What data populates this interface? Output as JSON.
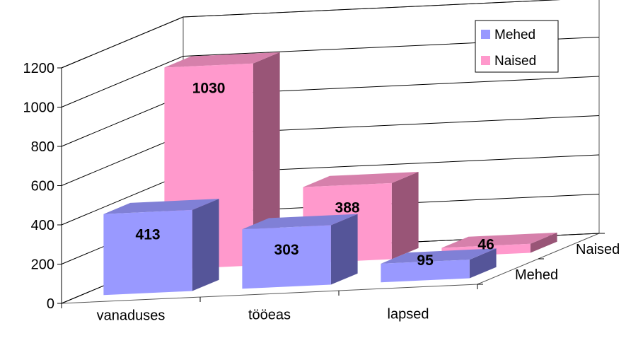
{
  "chart_data": {
    "type": "bar",
    "categories": [
      "vanaduses",
      "tööeas",
      "lapsed"
    ],
    "series": [
      {
        "name": "Mehed",
        "values": [
          413,
          303,
          95
        ]
      },
      {
        "name": "Naised",
        "values": [
          1030,
          388,
          46
        ]
      }
    ],
    "ylim": [
      0,
      1200
    ],
    "yticks": [
      "0",
      "200",
      "400",
      "600",
      "800",
      "1000",
      "1200"
    ],
    "depth_labels": [
      "Mehed",
      "Naised"
    ],
    "legend": {
      "position": "top-right",
      "entries": [
        "Mehed",
        "Naised"
      ]
    },
    "grid": true,
    "three_d": true,
    "colors": {
      "Mehed": {
        "front": "#9999ff",
        "top": "#8080d6",
        "side": "#555599"
      },
      "Naised": {
        "front": "#ff99cc",
        "top": "#d680ab",
        "side": "#995577"
      }
    }
  }
}
